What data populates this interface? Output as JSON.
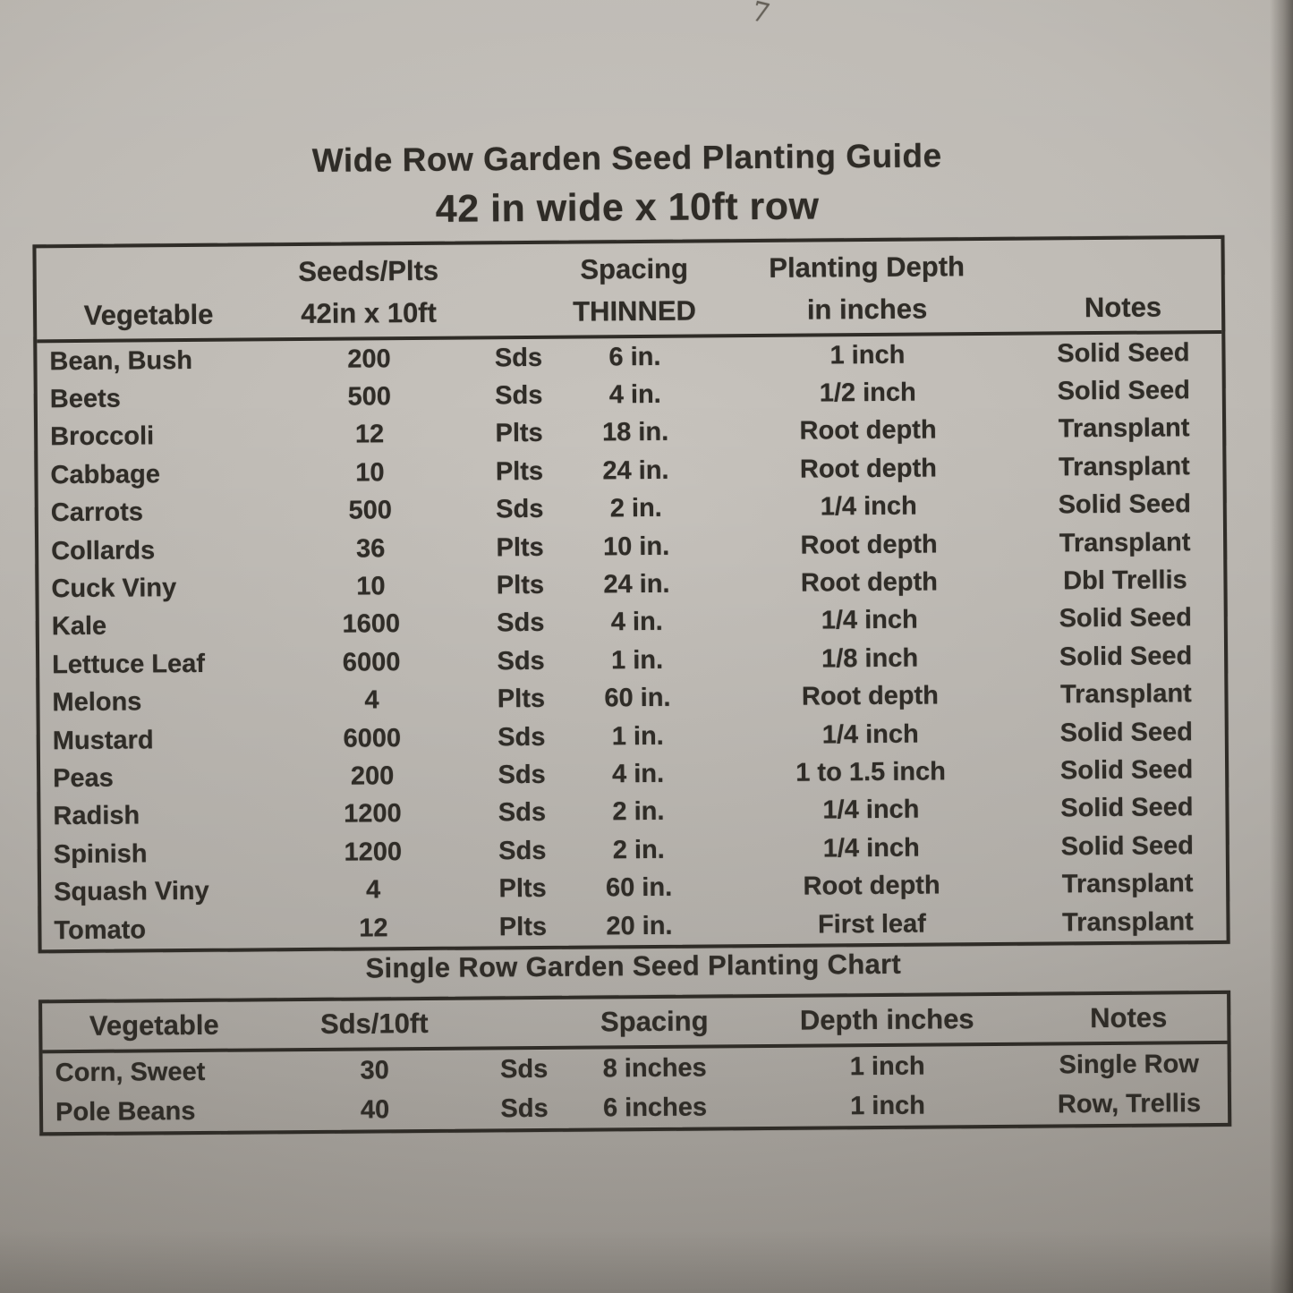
{
  "colors": {
    "paper": "#bcb8b2",
    "ink": "#2f2c27"
  },
  "photo": {
    "corner_mark": "7"
  },
  "title": "Wide Row Garden Seed Planting Guide",
  "subtitle": "42 in wide x 10ft row",
  "wide_row_table": {
    "header": {
      "vegetable": "Vegetable",
      "seeds_top": "Seeds/Plts",
      "seeds_bottom": "42in x 10ft",
      "spacing_top": "Spacing",
      "spacing_bottom": "THINNED",
      "depth_top": "Planting Depth",
      "depth_bottom": "in inches",
      "notes": "Notes"
    },
    "rows": [
      {
        "vegetable": "Bean, Bush",
        "qty": "200",
        "unit": "Sds",
        "spacing": "6 in.",
        "depth": "1 inch",
        "notes": "Solid Seed"
      },
      {
        "vegetable": "Beets",
        "qty": "500",
        "unit": "Sds",
        "spacing": "4 in.",
        "depth": "1/2 inch",
        "notes": "Solid Seed"
      },
      {
        "vegetable": "Broccoli",
        "qty": "12",
        "unit": "Plts",
        "spacing": "18 in.",
        "depth": "Root depth",
        "notes": "Transplant"
      },
      {
        "vegetable": "Cabbage",
        "qty": "10",
        "unit": "Plts",
        "spacing": "24 in.",
        "depth": "Root depth",
        "notes": "Transplant"
      },
      {
        "vegetable": "Carrots",
        "qty": "500",
        "unit": "Sds",
        "spacing": "2 in.",
        "depth": "1/4 inch",
        "notes": "Solid Seed"
      },
      {
        "vegetable": "Collards",
        "qty": "36",
        "unit": "Plts",
        "spacing": "10 in.",
        "depth": "Root depth",
        "notes": "Transplant"
      },
      {
        "vegetable": "Cuck Viny",
        "qty": "10",
        "unit": "Plts",
        "spacing": "24 in.",
        "depth": "Root depth",
        "notes": "Dbl Trellis"
      },
      {
        "vegetable": "Kale",
        "qty": "1600",
        "unit": "Sds",
        "spacing": "4 in.",
        "depth": "1/4 inch",
        "notes": "Solid Seed"
      },
      {
        "vegetable": "Lettuce Leaf",
        "qty": "6000",
        "unit": "Sds",
        "spacing": "1 in.",
        "depth": "1/8 inch",
        "notes": "Solid Seed"
      },
      {
        "vegetable": "Melons",
        "qty": "4",
        "unit": "Plts",
        "spacing": "60 in.",
        "depth": "Root depth",
        "notes": "Transplant"
      },
      {
        "vegetable": "Mustard",
        "qty": "6000",
        "unit": "Sds",
        "spacing": "1 in.",
        "depth": "1/4 inch",
        "notes": "Solid Seed"
      },
      {
        "vegetable": "Peas",
        "qty": "200",
        "unit": "Sds",
        "spacing": "4 in.",
        "depth": "1 to 1.5 inch",
        "notes": "Solid Seed"
      },
      {
        "vegetable": "Radish",
        "qty": "1200",
        "unit": "Sds",
        "spacing": "2 in.",
        "depth": "1/4 inch",
        "notes": "Solid Seed"
      },
      {
        "vegetable": "Spinish",
        "qty": "1200",
        "unit": "Sds",
        "spacing": "2 in.",
        "depth": "1/4 inch",
        "notes": "Solid Seed"
      },
      {
        "vegetable": "Squash Viny",
        "qty": "4",
        "unit": "Plts",
        "spacing": "60 in.",
        "depth": "Root depth",
        "notes": "Transplant"
      },
      {
        "vegetable": "Tomato",
        "qty": "12",
        "unit": "Plts",
        "spacing": "20 in.",
        "depth": "First leaf",
        "notes": "Transplant"
      }
    ]
  },
  "single_row_table": {
    "title": "Single Row Garden Seed Planting Chart",
    "header": {
      "vegetable": "Vegetable",
      "qty": "Sds/10ft",
      "spacing": "Spacing",
      "depth": "Depth inches",
      "notes": "Notes"
    },
    "rows": [
      {
        "vegetable": "Corn, Sweet",
        "qty": "30",
        "unit": "Sds",
        "spacing": "8 inches",
        "depth": "1 inch",
        "notes": "Single Row"
      },
      {
        "vegetable": "Pole Beans",
        "qty": "40",
        "unit": "Sds",
        "spacing": "6 inches",
        "depth": "1 inch",
        "notes": "Row, Trellis"
      }
    ]
  }
}
